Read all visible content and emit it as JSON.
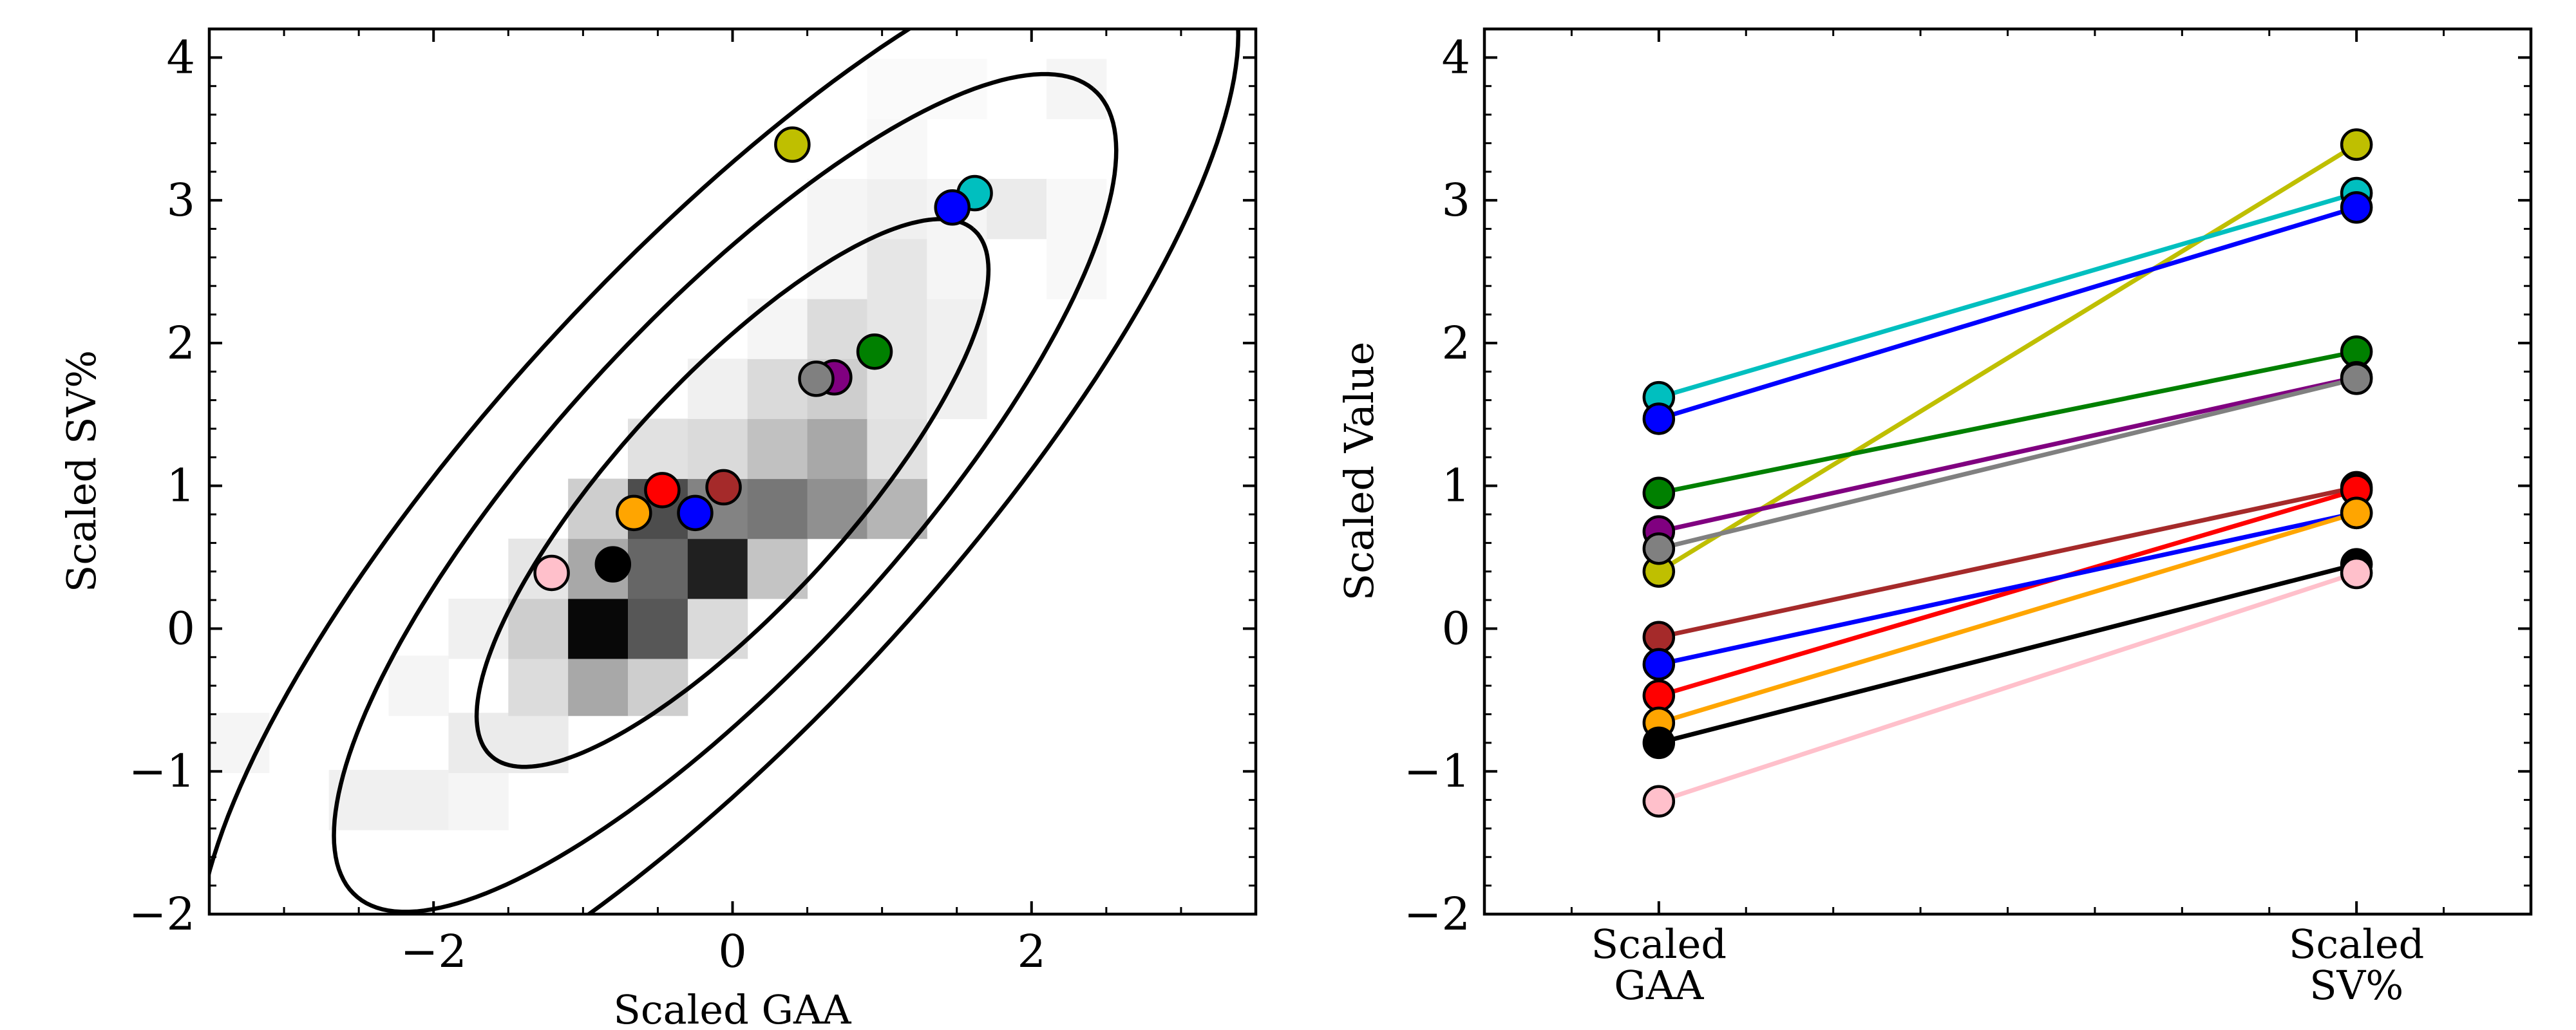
{
  "chart_data": [
    {
      "type": "scatter",
      "xlabel": "Scaled GAA",
      "ylabel": "Scaled SV%",
      "xlim": [
        -3.5,
        3.5
      ],
      "ylim": [
        -2,
        4.2
      ],
      "xticks": [
        -2,
        0,
        2
      ],
      "yticks": [
        -2,
        -1,
        0,
        1,
        2,
        3,
        4
      ],
      "grid": false,
      "background_heatmap": {
        "bin_width": 0.4,
        "bin_height": 0.42,
        "bins": [
          {
            "x": -3.3,
            "y": -0.8,
            "density": 0.04
          },
          {
            "x": -2.5,
            "y": -1.2,
            "density": 0.06
          },
          {
            "x": -2.1,
            "y": -1.2,
            "density": 0.06
          },
          {
            "x": -1.7,
            "y": -1.2,
            "density": 0.04
          },
          {
            "x": -2.1,
            "y": -0.4,
            "density": 0.04
          },
          {
            "x": -1.7,
            "y": -0.8,
            "density": 0.08
          },
          {
            "x": -1.3,
            "y": -0.8,
            "density": 0.08
          },
          {
            "x": -1.3,
            "y": -0.4,
            "density": 0.14
          },
          {
            "x": -0.9,
            "y": -0.4,
            "density": 0.35
          },
          {
            "x": -0.5,
            "y": -0.4,
            "density": 0.2
          },
          {
            "x": -1.7,
            "y": 0.0,
            "density": 0.06
          },
          {
            "x": -1.3,
            "y": 0.0,
            "density": 0.2
          },
          {
            "x": -0.9,
            "y": 0.0,
            "density": 1.0
          },
          {
            "x": -0.5,
            "y": 0.0,
            "density": 0.68
          },
          {
            "x": -0.1,
            "y": 0.0,
            "density": 0.15
          },
          {
            "x": -1.3,
            "y": 0.42,
            "density": 0.1
          },
          {
            "x": -0.9,
            "y": 0.42,
            "density": 0.35
          },
          {
            "x": -0.5,
            "y": 0.42,
            "density": 0.62
          },
          {
            "x": -0.1,
            "y": 0.42,
            "density": 0.9
          },
          {
            "x": 0.3,
            "y": 0.42,
            "density": 0.24
          },
          {
            "x": -0.9,
            "y": 0.84,
            "density": 0.2
          },
          {
            "x": -0.5,
            "y": 0.84,
            "density": 0.72
          },
          {
            "x": -0.1,
            "y": 0.84,
            "density": 0.5
          },
          {
            "x": 0.3,
            "y": 0.84,
            "density": 0.55
          },
          {
            "x": 0.7,
            "y": 0.84,
            "density": 0.45
          },
          {
            "x": 1.1,
            "y": 0.84,
            "density": 0.3
          },
          {
            "x": -0.5,
            "y": 1.26,
            "density": 0.12
          },
          {
            "x": -0.1,
            "y": 1.26,
            "density": 0.15
          },
          {
            "x": 0.3,
            "y": 1.26,
            "density": 0.25
          },
          {
            "x": 0.7,
            "y": 1.26,
            "density": 0.35
          },
          {
            "x": 1.1,
            "y": 1.26,
            "density": 0.12
          },
          {
            "x": -0.1,
            "y": 1.68,
            "density": 0.06
          },
          {
            "x": 0.3,
            "y": 1.68,
            "density": 0.15
          },
          {
            "x": 0.7,
            "y": 1.68,
            "density": 0.2
          },
          {
            "x": 1.1,
            "y": 1.68,
            "density": 0.1
          },
          {
            "x": 0.3,
            "y": 2.1,
            "density": 0.04
          },
          {
            "x": 0.7,
            "y": 2.1,
            "density": 0.14
          },
          {
            "x": 1.1,
            "y": 2.1,
            "density": 0.1
          },
          {
            "x": 1.5,
            "y": 2.1,
            "density": 0.06
          },
          {
            "x": 1.5,
            "y": 1.68,
            "density": 0.06
          },
          {
            "x": 0.7,
            "y": 2.52,
            "density": 0.04
          },
          {
            "x": 1.1,
            "y": 2.52,
            "density": 0.1
          },
          {
            "x": 1.5,
            "y": 2.52,
            "density": 0.04
          },
          {
            "x": 0.7,
            "y": 2.94,
            "density": 0.04
          },
          {
            "x": 1.1,
            "y": 2.94,
            "density": 0.06
          },
          {
            "x": 1.5,
            "y": 2.94,
            "density": 0.04
          },
          {
            "x": 1.9,
            "y": 2.94,
            "density": 0.08
          },
          {
            "x": 2.3,
            "y": 2.94,
            "density": 0.03
          },
          {
            "x": 2.3,
            "y": 2.52,
            "density": 0.03
          },
          {
            "x": 1.1,
            "y": 3.36,
            "density": 0.03
          },
          {
            "x": 2.3,
            "y": 3.78,
            "density": 0.04
          },
          {
            "x": 1.1,
            "y": 3.78,
            "density": 0.02
          },
          {
            "x": 1.5,
            "y": 3.78,
            "density": 0.02
          }
        ]
      },
      "contours": [
        {
          "cx": 0.0,
          "cy": 0.95,
          "a": 2.45,
          "b": 0.78,
          "angle_deg": 49
        },
        {
          "cx": -0.05,
          "cy": 0.95,
          "a": 3.75,
          "b": 1.18,
          "angle_deg": 49
        },
        {
          "cx": -0.1,
          "cy": 0.95,
          "a": 5.0,
          "b": 1.55,
          "angle_deg": 49
        }
      ],
      "points": [
        {
          "color": "#bfbf00",
          "x": 0.4,
          "y": 3.39
        },
        {
          "color": "#00bfbf",
          "x": 1.62,
          "y": 3.05
        },
        {
          "color": "#0000ff",
          "x": 1.47,
          "y": 2.95
        },
        {
          "color": "#008000",
          "x": 0.95,
          "y": 1.94
        },
        {
          "color": "#800080",
          "x": 0.68,
          "y": 1.76
        },
        {
          "color": "#808080",
          "x": 0.56,
          "y": 1.75
        },
        {
          "color": "#a52a2a",
          "x": -0.06,
          "y": 0.99
        },
        {
          "color": "#ff0000",
          "x": -0.47,
          "y": 0.97
        },
        {
          "color": "#0000ff",
          "x": -0.25,
          "y": 0.81
        },
        {
          "color": "#ffa500",
          "x": -0.66,
          "y": 0.81
        },
        {
          "color": "#000000",
          "x": -0.8,
          "y": 0.45
        },
        {
          "color": "#ffc0cb",
          "x": -1.21,
          "y": 0.39
        }
      ]
    },
    {
      "type": "line",
      "ylabel": "Scaled Value",
      "categories": [
        "Scaled\nGAA",
        "Scaled\nSV%"
      ],
      "ylim": [
        -2,
        4.2
      ],
      "yticks": [
        -2,
        -1,
        0,
        1,
        2,
        3,
        4
      ],
      "grid": false,
      "series": [
        {
          "color": "#bfbf00",
          "values": [
            0.4,
            3.39
          ]
        },
        {
          "color": "#00bfbf",
          "values": [
            1.62,
            3.05
          ]
        },
        {
          "color": "#0000ff",
          "values": [
            1.47,
            2.95
          ]
        },
        {
          "color": "#008000",
          "values": [
            0.95,
            1.94
          ]
        },
        {
          "color": "#800080",
          "values": [
            0.68,
            1.76
          ]
        },
        {
          "color": "#808080",
          "values": [
            0.56,
            1.75
          ]
        },
        {
          "color": "#a52a2a",
          "values": [
            -0.06,
            0.99
          ]
        },
        {
          "color": "#ff0000",
          "values": [
            -0.47,
            0.97
          ]
        },
        {
          "color": "#0000ff",
          "values": [
            -0.25,
            0.81
          ]
        },
        {
          "color": "#ffa500",
          "values": [
            -0.66,
            0.81
          ]
        },
        {
          "color": "#000000",
          "values": [
            -0.8,
            0.45
          ]
        },
        {
          "color": "#ffc0cb",
          "values": [
            -1.21,
            0.39
          ]
        }
      ]
    }
  ]
}
